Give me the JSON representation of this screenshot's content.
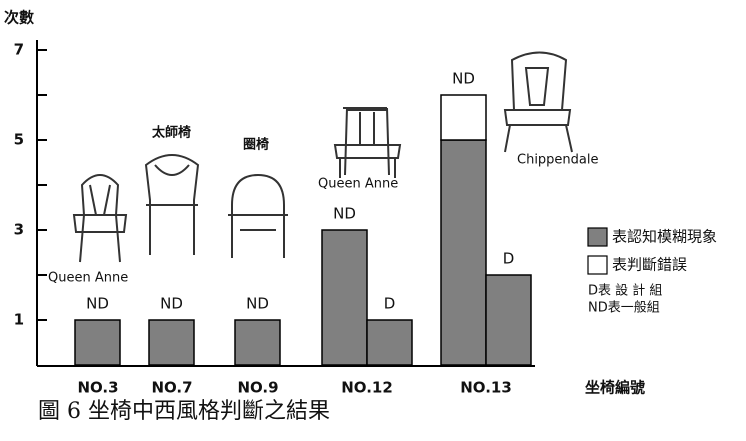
{
  "chart_data": {
    "type": "bar",
    "y_label": "次數",
    "x_label": "坐椅編號",
    "caption": "圖 6 坐椅中西風格判斷之結果",
    "categories": [
      "NO.3",
      "NO.7",
      "NO.9",
      "NO.12",
      "NO.13"
    ],
    "series_label": "ND",
    "series": [
      {
        "name": "表認知模糊現象",
        "color": "#808080",
        "values": [
          1,
          1,
          1,
          3,
          5
        ]
      },
      {
        "name": "表判斷錯誤",
        "color": "#ffffff",
        "values": [
          null,
          null,
          null,
          null,
          1
        ]
      }
    ],
    "second_bar": {
      "label": "D",
      "values": [
        null,
        null,
        null,
        1,
        2
      ]
    },
    "notes": [
      "D表 設 計 組",
      "ND表一般組"
    ],
    "chair_labels": [
      "Queen Anne",
      "太師椅",
      "圈椅",
      "Queen Anne",
      "Chippendale"
    ],
    "ylim": [
      0,
      7
    ],
    "yticks": [
      1,
      3,
      5,
      7
    ],
    "yminor": [
      2,
      4,
      6
    ]
  }
}
